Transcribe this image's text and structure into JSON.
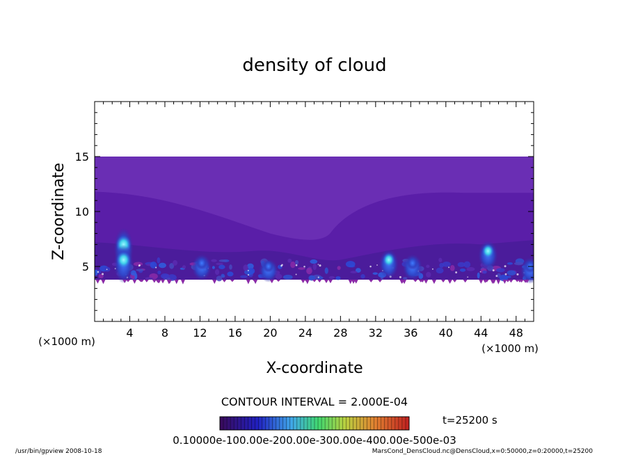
{
  "chart_data": {
    "type": "heatmap",
    "title": "density of cloud",
    "xlabel": "X-coordinate",
    "ylabel": "Z-coordinate",
    "x_unit": "(×1000 m)",
    "y_unit": "(×1000 m)",
    "xlim": [
      0,
      50
    ],
    "ylim": [
      0,
      20
    ],
    "x_ticks": [
      "4",
      "8",
      "12",
      "16",
      "20",
      "24",
      "28",
      "32",
      "36",
      "40",
      "44",
      "48"
    ],
    "y_ticks": [
      "5",
      "10",
      "15"
    ],
    "contour_interval": "CONTOUR INTERVAL = 2.000E-04",
    "time_label": "t=25200 s",
    "colorbar_label": "0.10000e-100.00e-200.00e-300.00e-400.00e-500e-03",
    "field_z_range": [
      3.8,
      15.0
    ],
    "colors": {
      "top_layer": "#6a2eb4",
      "mid_layer": "#5a1ea8",
      "bottom_band": "#4b1c9b",
      "blue_cloud": "#2f5fe0",
      "cyan_core": "#40d0e8",
      "edge": "#8a2aa8"
    },
    "cloud_cells": [
      {
        "x": 3.3,
        "z": 7.0,
        "strength": 1.0
      },
      {
        "x": 3.3,
        "z": 5.6,
        "strength": 0.9
      },
      {
        "x": 12.2,
        "z": 5.3,
        "strength": 0.5
      },
      {
        "x": 19.8,
        "z": 5.0,
        "strength": 0.4
      },
      {
        "x": 33.5,
        "z": 5.6,
        "strength": 0.6
      },
      {
        "x": 36.2,
        "z": 5.3,
        "strength": 0.5
      },
      {
        "x": 44.8,
        "z": 6.4,
        "strength": 0.6
      },
      {
        "x": 49.6,
        "z": 5.0,
        "strength": 0.5
      }
    ]
  },
  "footer": {
    "left": "/usr/bin/gpview   2008-10-18",
    "right": "MarsCond_DensCloud.nc@DensCloud,x=0:50000,z=0:20000,t=25200"
  }
}
